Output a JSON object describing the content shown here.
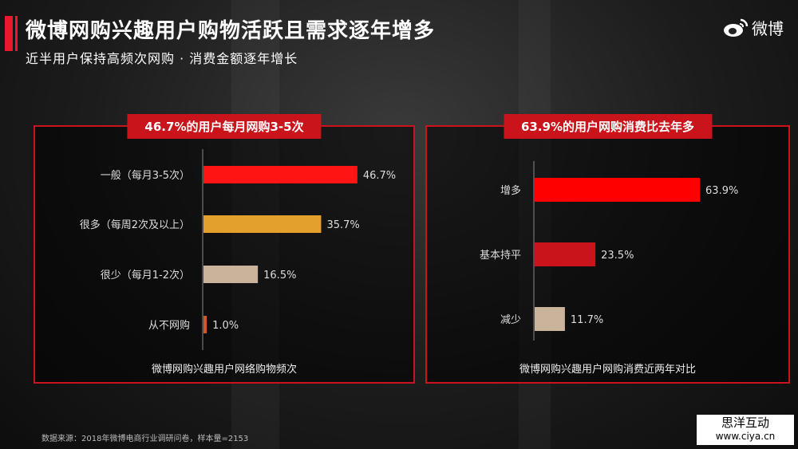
{
  "header": {
    "title": "微博网购兴趣用户购物活跃且需求逐年增多",
    "subtitle": "近半用户保持高频次网购 · 消费金额逐年增长",
    "logo_text": "微博"
  },
  "chart_data": [
    {
      "type": "bar",
      "orientation": "horizontal",
      "title": "46.7%的用户每月网购3-5次",
      "xlabel": "微博网购兴趣用户网络购物频次",
      "ylabel": "",
      "categories": [
        "一般（每月3-5次）",
        "很多（每周2次及以上）",
        "很少（每月1-2次）",
        "从不网购"
      ],
      "values": [
        46.7,
        35.7,
        16.5,
        1.0
      ],
      "labels": [
        "46.7%",
        "35.7%",
        "16.5%",
        "1.0%"
      ],
      "colors": [
        "#ff1414",
        "#e3a02c",
        "#c9b39a",
        "#d0582a"
      ],
      "unit": "%"
    },
    {
      "type": "bar",
      "orientation": "horizontal",
      "title": "63.9%的用户网购消费比去年多",
      "xlabel": "微博网购兴趣用户网购消费近两年对比",
      "ylabel": "",
      "categories": [
        "增多",
        "基本持平",
        "减少"
      ],
      "values": [
        63.9,
        23.5,
        11.7
      ],
      "labels": [
        "63.9%",
        "23.5%",
        "11.7%"
      ],
      "colors": [
        "#ff0000",
        "#c8141a",
        "#c9b39a"
      ],
      "unit": "%"
    }
  ],
  "footer": {
    "source": "数据来源：2018年微博电商行业调研问卷，样本量=2153",
    "watermark_name": "思洋互动",
    "watermark_url": "www.ciya.cn"
  }
}
